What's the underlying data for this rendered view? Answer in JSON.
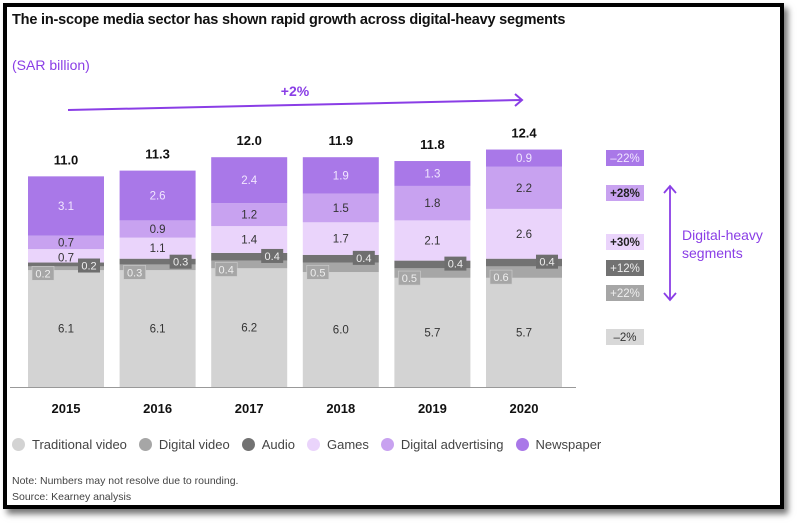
{
  "header": {
    "title": "The in-scope media sector has shown rapid growth across digital-heavy segments",
    "unit": "(SAR billion)"
  },
  "chart_data": {
    "type": "bar",
    "stacked": true,
    "title": "The in-scope media sector has shown rapid growth across digital-heavy segments",
    "ylabel": "SAR billion",
    "xlabel": "",
    "categories": [
      "2015",
      "2016",
      "2017",
      "2018",
      "2019",
      "2020"
    ],
    "totals": [
      "11.0",
      "11.3",
      "12.0",
      "11.9",
      "11.8",
      "12.4"
    ],
    "series": [
      {
        "name": "Traditional video",
        "color": "#d3d3d3",
        "label_color": "#333333",
        "values": [
          6.1,
          6.1,
          6.2,
          6.0,
          5.7,
          5.7
        ],
        "cagr": "–2%"
      },
      {
        "name": "Digital video",
        "color": "#a6a6a6",
        "label_color": "#eeeeee",
        "values": [
          0.2,
          0.3,
          0.4,
          0.5,
          0.5,
          0.6
        ],
        "cagr": "+22%"
      },
      {
        "name": "Audio",
        "color": "#727272",
        "label_color": "#eeeeee",
        "values": [
          0.2,
          0.3,
          0.4,
          0.4,
          0.4,
          0.4
        ],
        "cagr": "+12%"
      },
      {
        "name": "Games",
        "color": "#ead4fb",
        "label_color": "#333333",
        "values": [
          0.7,
          1.1,
          1.4,
          1.7,
          2.1,
          2.6
        ],
        "cagr": "+30%"
      },
      {
        "name": "Digital advertising",
        "color": "#c8a2f0",
        "label_color": "#333333",
        "values": [
          0.7,
          0.9,
          1.2,
          1.5,
          1.8,
          2.2
        ],
        "cagr": "+28%"
      },
      {
        "name": "Newspaper",
        "color": "#a978e8",
        "label_color": "#f1e6ff",
        "values": [
          3.1,
          2.6,
          2.4,
          1.9,
          1.3,
          0.9
        ],
        "cagr": "–22%"
      }
    ],
    "ylim": [
      0,
      13
    ],
    "grid": false,
    "legend_position": "bottom",
    "annotations": {
      "overall_cagr": "+2%",
      "digital_heavy_label": "Digital-heavy segments"
    }
  },
  "footer": {
    "note": "Note: Numbers may not resolve due to rounding.",
    "source": "Source: Kearney analysis"
  },
  "colors": {
    "accent": "#8a3ee6"
  }
}
